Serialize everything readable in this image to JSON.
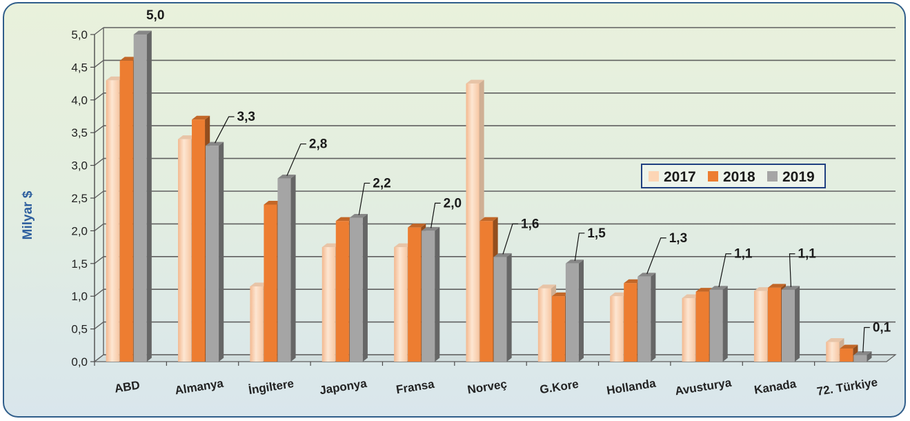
{
  "chart_data": {
    "type": "bar",
    "ylabel": "Milyar  $",
    "ylim": [
      0,
      5
    ],
    "y_ticks": [
      "0,0",
      "0,5",
      "1,0",
      "1,5",
      "2,0",
      "2,5",
      "3,0",
      "3,5",
      "4,0",
      "4,5",
      "5,0"
    ],
    "categories": [
      "ABD",
      "Almanya",
      "İngiltere",
      "Japonya",
      "Fransa",
      "Norveç",
      "G.Kore",
      "Hollanda",
      "Avusturya",
      "Kanada",
      "72. Türkiye"
    ],
    "series": [
      {
        "name": "2017",
        "color": "#fcd5b5",
        "values": [
          4.3,
          3.4,
          1.15,
          1.75,
          1.75,
          4.25,
          1.12,
          1.0,
          0.97,
          1.08,
          0.3
        ]
      },
      {
        "name": "2018",
        "color": "#ed7d31",
        "values": [
          4.6,
          3.7,
          2.4,
          2.15,
          2.05,
          2.15,
          1.0,
          1.2,
          1.07,
          1.13,
          0.2
        ]
      },
      {
        "name": "2019",
        "color": "#a5a5a5",
        "values": [
          5.0,
          3.3,
          2.8,
          2.2,
          2.0,
          1.6,
          1.5,
          1.3,
          1.1,
          1.1,
          0.1
        ]
      }
    ],
    "data_labels_2019": [
      "5,0",
      "3,3",
      "2,8",
      "2,2",
      "2,0",
      "1,6",
      "1,5",
      "1,3",
      "1,1",
      "1,1",
      "0,1"
    ],
    "legend_position": "right-center",
    "grid": true
  }
}
